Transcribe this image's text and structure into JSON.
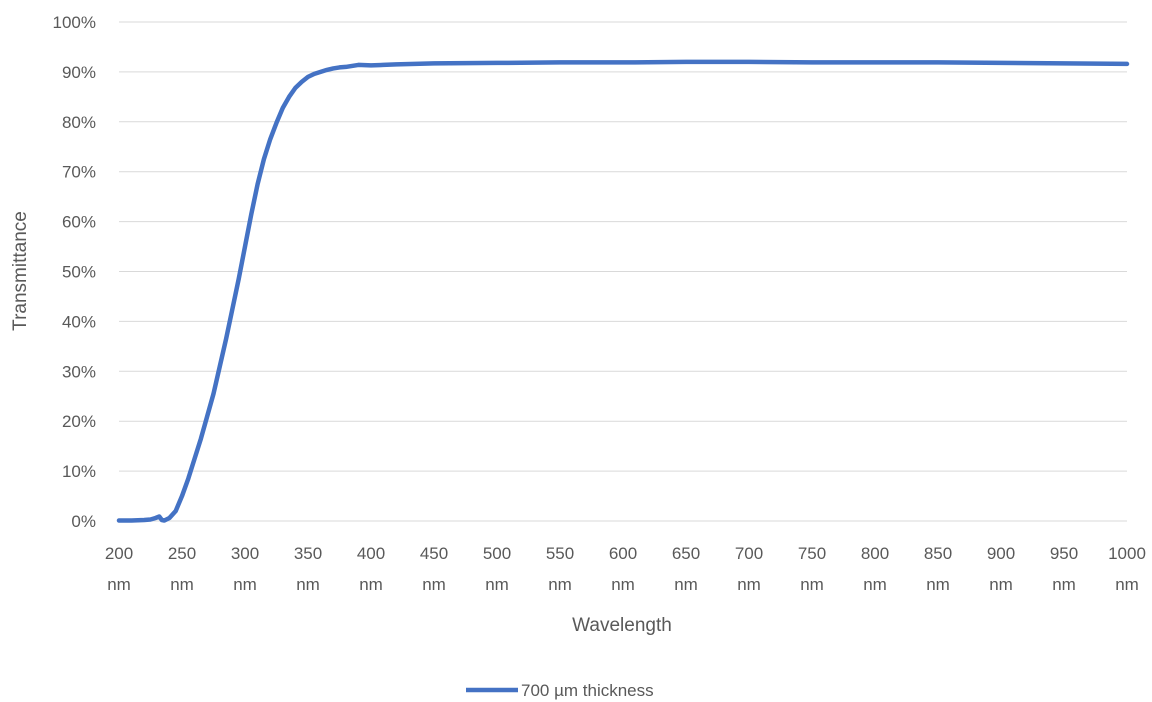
{
  "chart_data": {
    "type": "line",
    "title": "",
    "xlabel": "Wavelength",
    "ylabel": "Transmittance",
    "xlim": [
      200,
      1000
    ],
    "ylim": [
      0,
      100
    ],
    "grid": true,
    "legend_position": "bottom",
    "x_ticks": [
      {
        "value": 200,
        "line1": "200",
        "line2": "nm"
      },
      {
        "value": 250,
        "line1": "250",
        "line2": "nm"
      },
      {
        "value": 300,
        "line1": "300",
        "line2": "nm"
      },
      {
        "value": 350,
        "line1": "350",
        "line2": "nm"
      },
      {
        "value": 400,
        "line1": "400",
        "line2": "nm"
      },
      {
        "value": 450,
        "line1": "450",
        "line2": "nm"
      },
      {
        "value": 500,
        "line1": "500",
        "line2": "nm"
      },
      {
        "value": 550,
        "line1": "550",
        "line2": "nm"
      },
      {
        "value": 600,
        "line1": "600",
        "line2": "nm"
      },
      {
        "value": 650,
        "line1": "650",
        "line2": "nm"
      },
      {
        "value": 700,
        "line1": "700",
        "line2": "nm"
      },
      {
        "value": 750,
        "line1": "750",
        "line2": "nm"
      },
      {
        "value": 800,
        "line1": "800",
        "line2": "nm"
      },
      {
        "value": 850,
        "line1": "850",
        "line2": "nm"
      },
      {
        "value": 900,
        "line1": "900",
        "line2": "nm"
      },
      {
        "value": 950,
        "line1": "950",
        "line2": "nm"
      },
      {
        "value": 1000,
        "line1": "1000",
        "line2": "nm"
      }
    ],
    "y_ticks": [
      {
        "value": 0,
        "label": "0%"
      },
      {
        "value": 10,
        "label": "10%"
      },
      {
        "value": 20,
        "label": "20%"
      },
      {
        "value": 30,
        "label": "30%"
      },
      {
        "value": 40,
        "label": "40%"
      },
      {
        "value": 50,
        "label": "50%"
      },
      {
        "value": 60,
        "label": "60%"
      },
      {
        "value": 70,
        "label": "70%"
      },
      {
        "value": 80,
        "label": "80%"
      },
      {
        "value": 90,
        "label": "90%"
      },
      {
        "value": 100,
        "label": "100%"
      }
    ],
    "series": [
      {
        "name": "700 µm thickness",
        "color": "#4472c4",
        "x": [
          200,
          210,
          220,
          225,
          229,
          232,
          234,
          236,
          240,
          245,
          250,
          255,
          260,
          265,
          270,
          275,
          280,
          285,
          290,
          295,
          300,
          305,
          310,
          315,
          320,
          325,
          330,
          335,
          340,
          345,
          350,
          355,
          360,
          365,
          370,
          375,
          380,
          385,
          390,
          400,
          410,
          420,
          450,
          500,
          550,
          600,
          650,
          700,
          750,
          800,
          850,
          900,
          950,
          1000
        ],
        "y": [
          0.1,
          0.1,
          0.2,
          0.3,
          0.6,
          0.9,
          0.2,
          0.1,
          0.6,
          2.0,
          5.0,
          8.5,
          12.5,
          16.5,
          21.0,
          25.5,
          31.0,
          36.5,
          42.5,
          48.5,
          55.0,
          61.5,
          67.5,
          72.5,
          76.5,
          79.8,
          82.8,
          85.0,
          86.8,
          88.0,
          89.0,
          89.6,
          90.0,
          90.4,
          90.7,
          90.9,
          91.0,
          91.2,
          91.4,
          91.3,
          91.4,
          91.5,
          91.7,
          91.8,
          91.9,
          91.9,
          92.0,
          92.0,
          91.9,
          91.9,
          91.9,
          91.8,
          91.7,
          91.6
        ]
      }
    ]
  }
}
